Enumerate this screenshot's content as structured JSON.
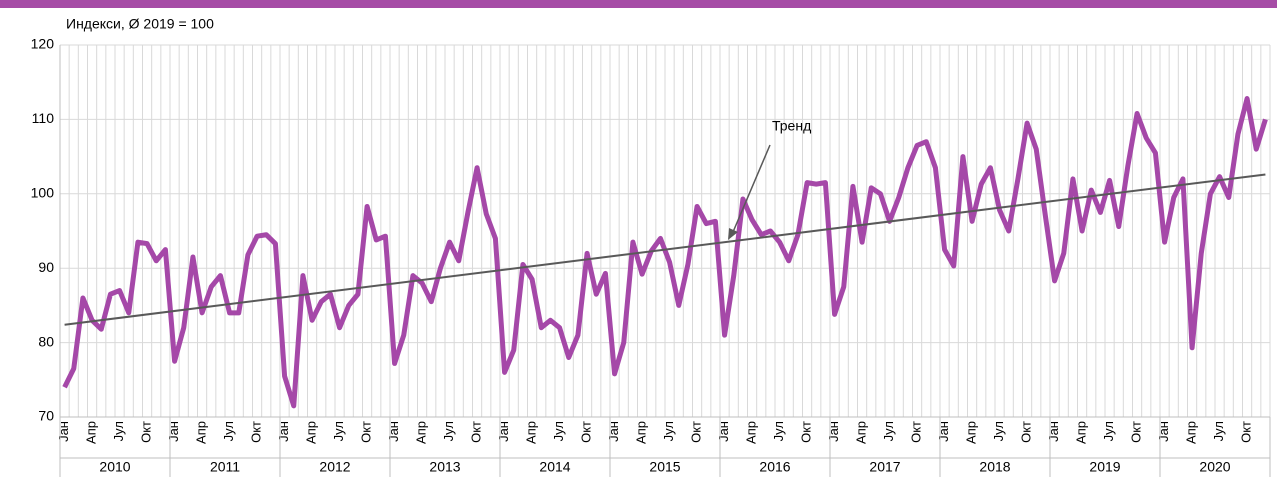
{
  "chart_data": {
    "type": "line",
    "ylabel": "Индекси, Ø 2019 = 100",
    "categories": [
      "Јан",
      null,
      null,
      "Апр",
      null,
      null,
      "Јул",
      null,
      null,
      "Окт",
      null,
      null,
      "Јан",
      null,
      null,
      "Апр",
      null,
      null,
      "Јул",
      null,
      null,
      "Окт",
      null,
      null,
      "Јан",
      null,
      null,
      "Апр",
      null,
      null,
      "Јул",
      null,
      null,
      "Окт",
      null,
      null,
      "Јан",
      null,
      null,
      "Апр",
      null,
      null,
      "Јул",
      null,
      null,
      "Окт",
      null,
      null,
      "Јан",
      null,
      null,
      "Апр",
      null,
      null,
      "Јул",
      null,
      null,
      "Окт",
      null,
      null,
      "Јан",
      null,
      null,
      "Апр",
      null,
      null,
      "Јул",
      null,
      null,
      "Окт",
      null,
      null,
      "Јан",
      null,
      null,
      "Апр",
      null,
      null,
      "Јул",
      null,
      null,
      "Окт",
      null,
      null,
      "Јан",
      null,
      null,
      "Апр",
      null,
      null,
      "Јул",
      null,
      null,
      "Окт",
      null,
      null,
      "Јан",
      null,
      null,
      "Апр",
      null,
      null,
      "Јул",
      null,
      null,
      "Окт",
      null,
      null,
      "Јан",
      null,
      null,
      "Апр",
      null,
      null,
      "Јул",
      null,
      null,
      "Окт",
      null,
      null,
      "Јан",
      null,
      null,
      "Апр",
      null,
      null,
      "Јул",
      null,
      null,
      "Окт",
      null,
      null
    ],
    "years": [
      "2010",
      "2011",
      "2012",
      "2013",
      "2014",
      "2015",
      "2016",
      "2017",
      "2018",
      "2019",
      "2020"
    ],
    "series": [
      {
        "color": "#a548a8",
        "values": [
          74,
          76.5,
          86,
          83,
          81.8,
          86.5,
          87,
          84,
          93.5,
          93.3,
          91,
          92.5,
          77.5,
          82,
          91.5,
          84,
          87.5,
          89,
          84,
          84,
          91.8,
          94.3,
          94.5,
          93.3,
          75.5,
          71.5,
          89,
          83,
          85.5,
          86.5,
          82,
          85,
          86.5,
          98.3,
          93.8,
          94.3,
          77.2,
          81,
          89,
          88,
          85.5,
          90,
          93.5,
          91,
          97.5,
          103.5,
          97.3,
          94,
          76,
          79,
          90.5,
          88.5,
          82,
          83,
          82,
          78,
          81,
          92,
          86.5,
          89.3,
          75.8,
          80,
          93.5,
          89.2,
          92.3,
          94,
          90.8,
          85,
          90.5,
          98.3,
          96,
          96.3,
          81,
          89,
          99.3,
          96.5,
          94.5,
          95,
          93.5,
          91,
          94.5,
          101.5,
          101.3,
          101.5,
          83.8,
          87.5,
          101,
          93.5,
          100.8,
          100,
          96.3,
          99.5,
          103.5,
          106.5,
          107,
          103.5,
          92.5,
          90.3,
          105,
          96.3,
          101.3,
          103.5,
          97.8,
          95,
          102,
          109.5,
          106,
          97,
          88.3,
          92,
          102,
          95,
          100.5,
          97.5,
          101.8,
          95.6,
          103.8,
          110.8,
          107.5,
          105.5,
          93.5,
          99.5,
          102,
          79.3,
          92,
          100,
          102.3,
          99.5,
          108,
          112.8,
          106,
          110
        ]
      }
    ],
    "trend": {
      "label": "Тренд",
      "color": "#595959",
      "values": [
        82.4,
        102.6
      ]
    },
    "ylim": [
      70,
      120
    ],
    "yticks": [
      70,
      80,
      90,
      100,
      110,
      120
    ],
    "grid": true
  }
}
